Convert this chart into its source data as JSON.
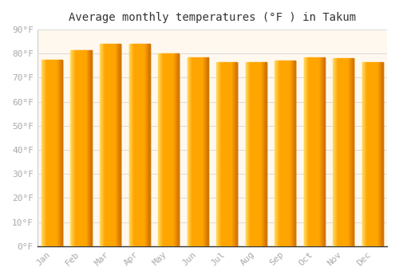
{
  "title": "Average monthly temperatures (°F ) in Takum",
  "months": [
    "Jan",
    "Feb",
    "Mar",
    "Apr",
    "May",
    "Jun",
    "Jul",
    "Aug",
    "Sep",
    "Oct",
    "Nov",
    "Dec"
  ],
  "values": [
    77.5,
    81.5,
    84.0,
    84.0,
    80.0,
    78.5,
    76.5,
    76.5,
    77.0,
    78.5,
    78.0,
    76.5
  ],
  "bar_color_main": "#FFA500",
  "bar_color_light": "#FFD060",
  "bar_color_dark": "#CC7700",
  "background_color": "#ffffff",
  "plot_bg_color": "#FFF8EE",
  "ylim": [
    0,
    90
  ],
  "yticks": [
    0,
    10,
    20,
    30,
    40,
    50,
    60,
    70,
    80,
    90
  ],
  "ytick_labels": [
    "0°F",
    "10°F",
    "20°F",
    "30°F",
    "40°F",
    "50°F",
    "60°F",
    "70°F",
    "80°F",
    "90°F"
  ],
  "title_fontsize": 10,
  "tick_fontsize": 8,
  "tick_color": "#aaaaaa",
  "grid_color": "#dddddd",
  "font_family": "monospace"
}
